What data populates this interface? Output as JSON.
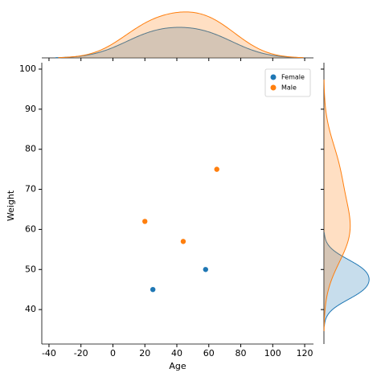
{
  "chart_data": {
    "type": "scatter",
    "xlabel": "Age",
    "ylabel": "Weight",
    "series": [
      {
        "name": "Female",
        "color": "#1f77b4",
        "x": [
          25,
          58
        ],
        "values": [
          45,
          50
        ]
      },
      {
        "name": "Male",
        "color": "#ff7f0e",
        "x": [
          20,
          44,
          65
        ],
        "values": [
          62,
          57,
          75
        ]
      }
    ],
    "xlim": [
      -44.5,
      125.5
    ],
    "ylim": [
      31.4,
      101.6
    ],
    "xticks": [
      -40,
      -20,
      0,
      20,
      40,
      60,
      80,
      100,
      120
    ],
    "yticks": [
      40,
      50,
      60,
      70,
      80,
      90,
      100
    ],
    "legend": "upper right"
  }
}
